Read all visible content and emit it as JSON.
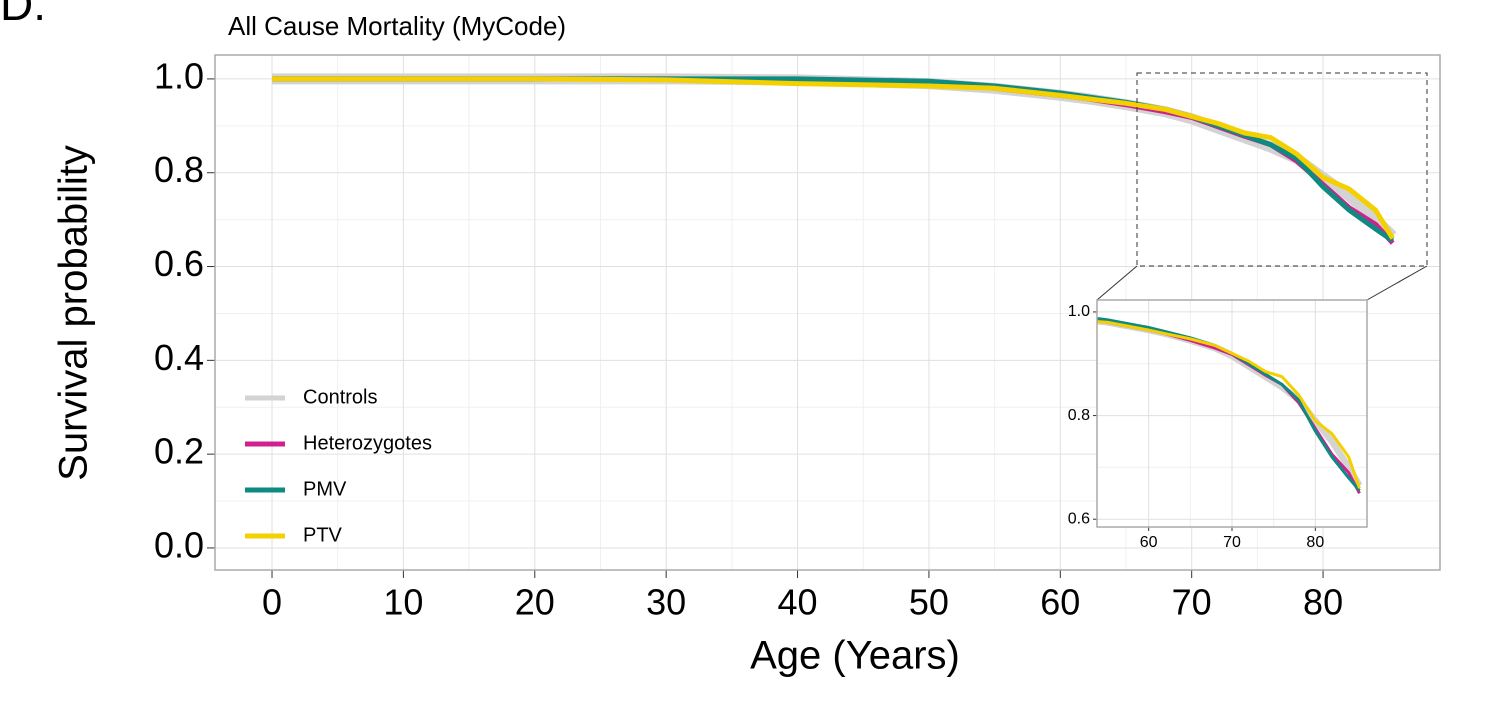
{
  "chart_data": [
    {
      "type": "line",
      "panel_label": "D.",
      "title": "All Cause Mortality (MyCode)",
      "x_label": "Age (Years)",
      "y_label": "Survival probability",
      "x": [
        0,
        10,
        20,
        30,
        40,
        50,
        55,
        60,
        62,
        65,
        68,
        70,
        72,
        74,
        76,
        78,
        80,
        82,
        84,
        85.3
      ],
      "series": [
        {
          "name": "Controls",
          "color": "#d3d3d3",
          "values": [
            1,
            1,
            1,
            1,
            0.998,
            0.99,
            0.98,
            0.965,
            0.958,
            0.945,
            0.93,
            0.915,
            0.895,
            0.875,
            0.855,
            0.83,
            0.79,
            0.75,
            0.7,
            0.665
          ]
        },
        {
          "name": "Heterozygotes",
          "color": "#d0208f",
          "values": [
            1,
            1,
            1,
            1,
            0.998,
            0.99,
            0.98,
            0.965,
            0.958,
            0.945,
            0.93,
            0.918,
            0.898,
            0.878,
            0.86,
            0.825,
            0.775,
            0.725,
            0.69,
            0.65
          ]
        },
        {
          "name": "PMV",
          "color": "#0f8a80",
          "values": [
            1,
            1,
            1,
            1,
            1,
            0.995,
            0.985,
            0.97,
            0.962,
            0.95,
            0.935,
            0.92,
            0.9,
            0.88,
            0.86,
            0.83,
            0.77,
            0.72,
            0.68,
            0.655
          ]
        },
        {
          "name": "PTV",
          "color": "#f5d000",
          "values": [
            1,
            1,
            1,
            0.998,
            0.99,
            0.985,
            0.98,
            0.965,
            0.958,
            0.948,
            0.935,
            0.92,
            0.905,
            0.885,
            0.875,
            0.84,
            0.79,
            0.765,
            0.72,
            0.66
          ]
        }
      ],
      "xlim": [
        -4.34,
        88.9
      ],
      "ylim": [
        -0.047,
        1.051
      ],
      "xticks": [
        0,
        10,
        20,
        30,
        40,
        50,
        60,
        70,
        80
      ],
      "yticks": [
        {
          "value": 0,
          "label": "0.0"
        },
        0.2,
        0.4,
        0.6,
        0.8,
        {
          "value": 1,
          "label": "1.0"
        }
      ],
      "grid": true,
      "legend": "bottom-left"
    },
    {
      "type": "line",
      "xlim": [
        53.8,
        86.2
      ],
      "ylim": [
        0.585,
        1.023
      ],
      "xticks": [
        60,
        70,
        80
      ],
      "yticks": [
        0.6,
        0.8,
        {
          "value": 1,
          "label": "1.0"
        }
      ],
      "grid": true
    }
  ]
}
